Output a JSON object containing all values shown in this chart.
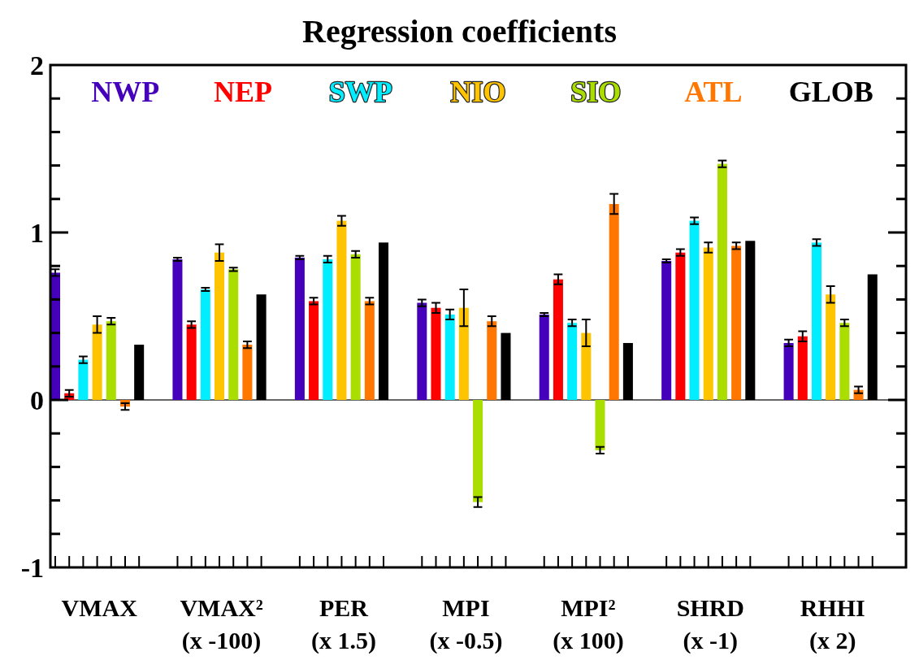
{
  "chart_data": {
    "type": "bar",
    "title": "Regression  coefficients",
    "categories": [
      "VMAX",
      "VMAX²\n(x -100)",
      "PER\n(x 1.5)",
      "MPI\n(x -0.5)",
      "MPI²\n(x 100)",
      "SHRD\n(x -1)",
      "RHHI\n(x 2)"
    ],
    "series": [
      {
        "name": "NWP",
        "color": "#4400bb",
        "values": [
          0.76,
          0.84,
          0.85,
          0.58,
          0.51,
          0.83,
          0.34
        ],
        "errors": [
          0.02,
          0.01,
          0.01,
          0.02,
          0.01,
          0.01,
          0.02
        ]
      },
      {
        "name": "NEP",
        "color": "#ff0000",
        "values": [
          0.04,
          0.45,
          0.59,
          0.55,
          0.72,
          0.88,
          0.38
        ],
        "errors": [
          0.02,
          0.02,
          0.02,
          0.03,
          0.03,
          0.02,
          0.03
        ]
      },
      {
        "name": "SWP",
        "color": "#00eeff",
        "values": [
          0.24,
          0.66,
          0.84,
          0.51,
          0.46,
          1.07,
          0.94
        ],
        "errors": [
          0.02,
          0.01,
          0.02,
          0.03,
          0.02,
          0.02,
          0.02
        ]
      },
      {
        "name": "NIO",
        "color": "#ffc400",
        "values": [
          0.45,
          0.88,
          1.07,
          0.55,
          0.4,
          0.91,
          0.63
        ],
        "errors": [
          0.05,
          0.05,
          0.03,
          0.11,
          0.08,
          0.03,
          0.05
        ]
      },
      {
        "name": "SIO",
        "color": "#aadd00",
        "values": [
          0.47,
          0.78,
          0.87,
          -0.61,
          -0.3,
          1.41,
          0.46
        ],
        "errors": [
          0.02,
          0.01,
          0.02,
          0.03,
          0.02,
          0.02,
          0.02
        ]
      },
      {
        "name": "ATL",
        "color": "#ff7700",
        "values": [
          -0.04,
          0.33,
          0.59,
          0.47,
          1.17,
          0.92,
          0.06
        ],
        "errors": [
          0.02,
          0.02,
          0.02,
          0.03,
          0.06,
          0.02,
          0.02
        ]
      },
      {
        "name": "GLOB",
        "color": "#000000",
        "values": [
          0.33,
          0.63,
          0.94,
          0.4,
          0.34,
          0.95,
          0.75
        ]
      }
    ],
    "ylim": [
      -1,
      2
    ],
    "yticks": [
      -1,
      {
        "value": -0.8,
        "label": null
      },
      {
        "value": -0.6,
        "label": null
      },
      {
        "value": -0.4,
        "label": null
      },
      {
        "value": -0.2,
        "label": null
      },
      0,
      {
        "value": 0.2,
        "label": null
      },
      {
        "value": 0.4,
        "label": null
      },
      {
        "value": 0.6,
        "label": null
      },
      {
        "value": 0.8,
        "label": null
      },
      1,
      {
        "value": 1.2,
        "label": null
      },
      {
        "value": 1.4,
        "label": null
      },
      {
        "value": 1.6,
        "label": null
      },
      {
        "value": 1.8,
        "label": null
      },
      2
    ],
    "ref_lines": [
      {
        "axis": "y",
        "value": 0,
        "color": "#333333"
      }
    ],
    "legend": "top",
    "grid": false
  }
}
